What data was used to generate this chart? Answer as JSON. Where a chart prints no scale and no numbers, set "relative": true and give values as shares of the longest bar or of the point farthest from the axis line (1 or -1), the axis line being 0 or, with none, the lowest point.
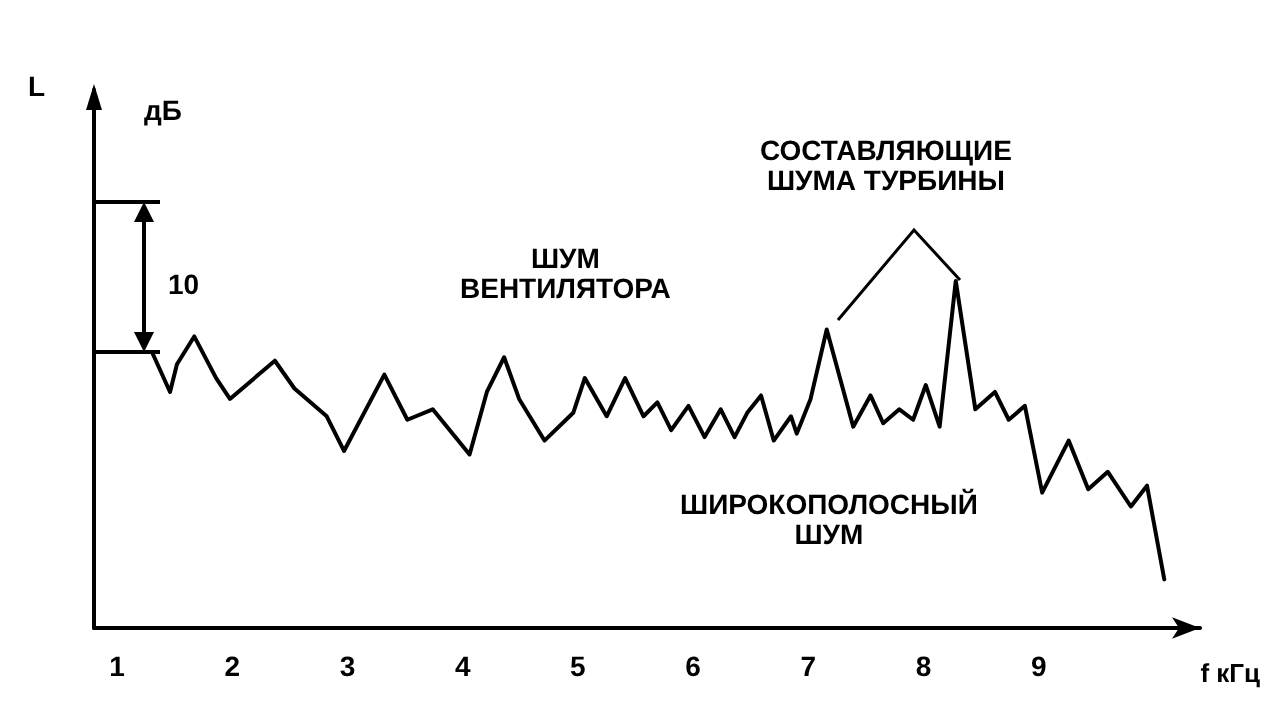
{
  "chart_data": {
    "type": "line",
    "relative": true,
    "color": "#000000",
    "marker": "none",
    "line_style": "solid",
    "grid": false,
    "xlabel": "f кГц",
    "xlim": [
      0.8,
      10.4
    ],
    "xticks": [
      1,
      2,
      3,
      4,
      5,
      6,
      7,
      8,
      9
    ],
    "annotations": [
      "L",
      "дБ",
      "10",
      "ШУМ\nВЕНТИЛЯТОРА",
      "СОСТАВЛЯЮЩИЕ\nШУМА ТУРБИНЫ",
      "ШИРОКОПОЛОСНЫЙ\nШУМ"
    ],
    "x": [
      1.31,
      1.46,
      1.52,
      1.67,
      1.86,
      1.98,
      2.37,
      2.54,
      2.82,
      2.97,
      3.32,
      3.52,
      3.74,
      4.06,
      4.21,
      4.36,
      4.49,
      4.71,
      4.96,
      5.06,
      5.25,
      5.41,
      5.57,
      5.69,
      5.81,
      5.96,
      6.1,
      6.24,
      6.36,
      6.47,
      6.59,
      6.7,
      6.85,
      6.9,
      7.02,
      7.16,
      7.39,
      7.54,
      7.65,
      7.79,
      7.91,
      8.02,
      8.14,
      8.28,
      8.45,
      8.62,
      8.74,
      8.88,
      9.03,
      9.26,
      9.43,
      9.6,
      9.8,
      9.94,
      10.09
    ],
    "values": [
      0.79,
      0.68,
      0.76,
      0.84,
      0.72,
      0.66,
      0.77,
      0.69,
      0.61,
      0.51,
      0.73,
      0.6,
      0.63,
      0.5,
      0.68,
      0.78,
      0.66,
      0.54,
      0.62,
      0.72,
      0.61,
      0.72,
      0.61,
      0.65,
      0.57,
      0.64,
      0.55,
      0.63,
      0.55,
      0.62,
      0.67,
      0.54,
      0.61,
      0.56,
      0.66,
      0.86,
      0.58,
      0.67,
      0.59,
      0.63,
      0.6,
      0.7,
      0.58,
      1,
      0.63,
      0.68,
      0.6,
      0.64,
      0.39,
      0.54,
      0.4,
      0.45,
      0.35,
      0.41,
      0.14
    ]
  }
}
